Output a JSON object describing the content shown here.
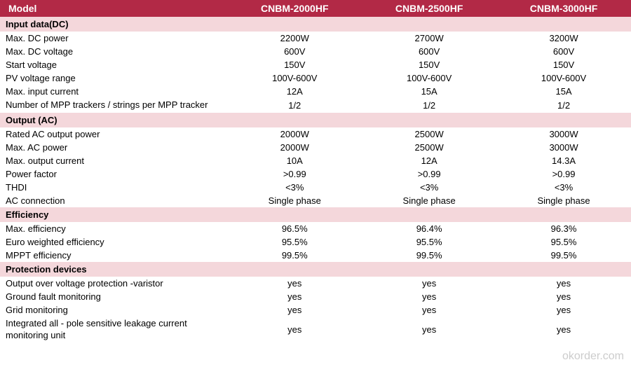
{
  "colors": {
    "header_bg": "#b22946",
    "header_text": "#ffffff",
    "section_bg": "#f4d7db",
    "section_text": "#000000",
    "data_text": "#000000",
    "body_bg": "#ffffff",
    "watermark_color": "#cccccc"
  },
  "typography": {
    "body_font": "Arial, sans-serif",
    "header_fontsize": 14,
    "data_fontsize": 13,
    "section_fontsize": 13
  },
  "headers": {
    "label": "Model",
    "col1": "CNBM-2000HF",
    "col2": "CNBM-2500HF",
    "col3": "CNBM-3000HF"
  },
  "sections": {
    "input": "Input data(DC)",
    "output": "Output (AC)",
    "efficiency": "Efficiency",
    "protection": "Protection devices"
  },
  "input_data": {
    "r1": {
      "label": "Max. DC power",
      "c1": "2200W",
      "c2": "2700W",
      "c3": "3200W"
    },
    "r2": {
      "label": "Max. DC voltage",
      "c1": "600V",
      "c2": "600V",
      "c3": "600V"
    },
    "r3": {
      "label": "Start voltage",
      "c1": "150V",
      "c2": "150V",
      "c3": "150V"
    },
    "r4": {
      "label": "PV voltage range",
      "c1": "100V-600V",
      "c2": "100V-600V",
      "c3": "100V-600V"
    },
    "r5": {
      "label": "Max. input current",
      "c1": "12A",
      "c2": "15A",
      "c3": "15A"
    },
    "r6": {
      "label": "Number of MPP trackers / strings per MPP tracker",
      "c1": "1/2",
      "c2": "1/2",
      "c3": "1/2"
    }
  },
  "output_data": {
    "r1": {
      "label": "Rated AC output power",
      "c1": "2000W",
      "c2": "2500W",
      "c3": "3000W"
    },
    "r2": {
      "label": "Max. AC power",
      "c1": "2000W",
      "c2": "2500W",
      "c3": "3000W"
    },
    "r3": {
      "label": "Max. output current",
      "c1": "10A",
      "c2": "12A",
      "c3": "14.3A"
    },
    "r4": {
      "label": "Power factor",
      "c1": ">0.99",
      "c2": ">0.99",
      "c3": ">0.99"
    },
    "r5": {
      "label": "THDI",
      "c1": "<3%",
      "c2": "<3%",
      "c3": "<3%"
    },
    "r6": {
      "label": "AC connection",
      "c1": "Single phase",
      "c2": "Single phase",
      "c3": "Single phase"
    }
  },
  "efficiency_data": {
    "r1": {
      "label": "Max. efficiency",
      "c1": "96.5%",
      "c2": "96.4%",
      "c3": "96.3%"
    },
    "r2": {
      "label": "Euro weighted efficiency",
      "c1": "95.5%",
      "c2": "95.5%",
      "c3": "95.5%"
    },
    "r3": {
      "label": "MPPT efficiency",
      "c1": "99.5%",
      "c2": "99.5%",
      "c3": "99.5%"
    }
  },
  "protection_data": {
    "r1": {
      "label": "Output over voltage protection -varistor",
      "c1": "yes",
      "c2": "yes",
      "c3": "yes"
    },
    "r2": {
      "label": "Ground fault monitoring",
      "c1": "yes",
      "c2": "yes",
      "c3": "yes"
    },
    "r3": {
      "label": "Grid monitoring",
      "c1": "yes",
      "c2": "yes",
      "c3": "yes"
    },
    "r4": {
      "label": "Integrated all - pole sensitive leakage current monitoring unit",
      "c1": "yes",
      "c2": "yes",
      "c3": "yes"
    }
  },
  "watermark": "okorder.com"
}
